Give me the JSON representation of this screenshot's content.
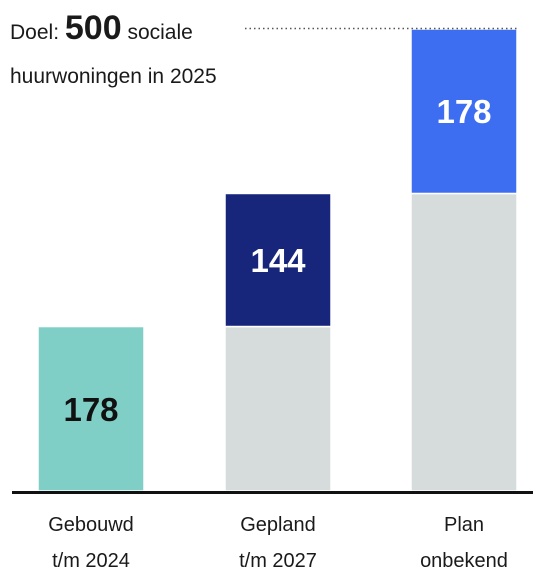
{
  "note": {
    "prefix": "Doel:",
    "goal": "500",
    "suffix": "sociale",
    "line2": "huurwoningen in 2025"
  },
  "chart_data": {
    "type": "bar",
    "stacked": true,
    "title": "",
    "xlabel": "",
    "ylabel": "",
    "ylim": [
      0,
      500
    ],
    "grid": false,
    "categories": [
      {
        "line1": "Gebouwd",
        "line2": "t/m 2024"
      },
      {
        "line1": "Gepland",
        "line2": "t/m 2027"
      },
      {
        "line1": "Plan",
        "line2": "onbekend"
      }
    ],
    "series": [
      {
        "values": [
          0,
          178,
          322
        ],
        "color": "#d6dbdc",
        "labels": [
          "",
          "",
          ""
        ]
      },
      {
        "values": [
          178,
          144,
          178
        ],
        "colors": [
          "#7fcfc7",
          "#17267a",
          "#3d6df0"
        ],
        "label_colors": [
          "#111111",
          "#ffffff",
          "#ffffff"
        ],
        "labels": [
          "178",
          "144",
          "178"
        ]
      }
    ],
    "goal_line": {
      "value": 500,
      "style": "dotted"
    }
  }
}
